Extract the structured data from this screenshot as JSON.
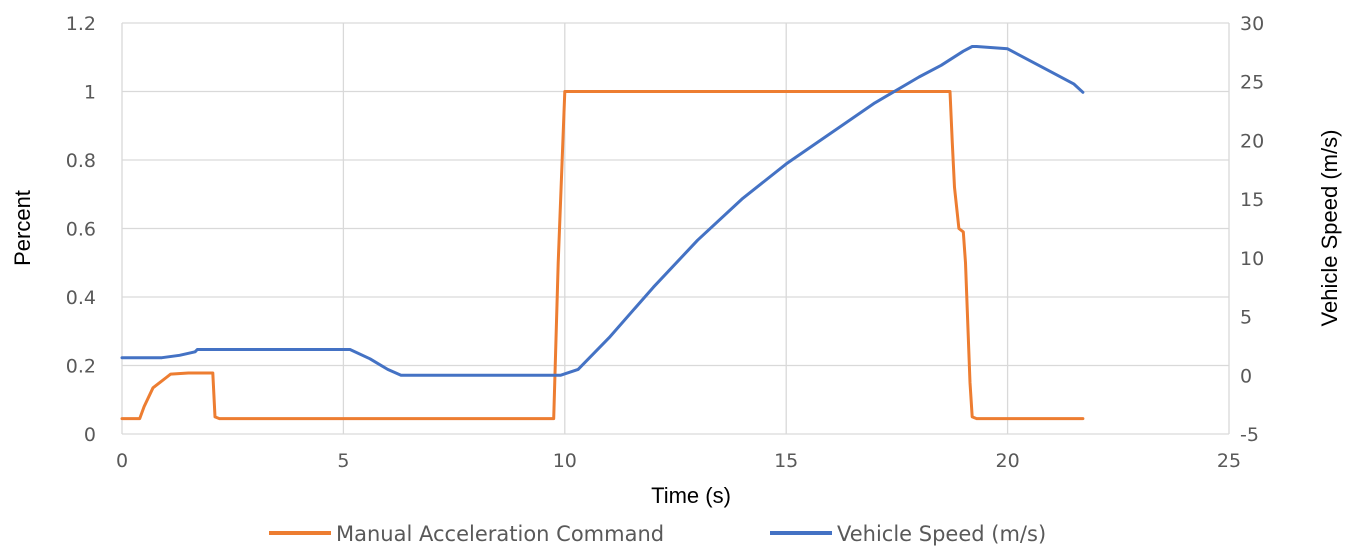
{
  "chart_data": {
    "type": "line",
    "xlabel": "Time (s)",
    "ylabel_left": "Percent",
    "ylabel_right": "Vehicle Speed (m/s)",
    "xlim": [
      0,
      25
    ],
    "ylim_left": [
      0,
      1.2
    ],
    "ylim_right": [
      -5,
      30
    ],
    "x_ticks": [
      "0",
      "5",
      "10",
      "15",
      "20",
      "25"
    ],
    "y_left_ticks": [
      "0",
      "0.2",
      "0.4",
      "0.6",
      "0.8",
      "1",
      "1.2"
    ],
    "y_right_ticks": [
      "-5",
      "0",
      "5",
      "10",
      "15",
      "20",
      "25",
      "30"
    ],
    "grid": true,
    "legend_position": "bottom",
    "series": [
      {
        "name": "Manual Acceleration Command",
        "axis": "left",
        "color": "#ED7D31",
        "x": [
          0,
          0.4,
          0.5,
          0.7,
          1.0,
          1.1,
          1.5,
          2.05,
          2.1,
          2.2,
          5.0,
          9.75,
          9.85,
          10.0,
          15.0,
          18.7,
          18.75,
          18.8,
          18.9,
          19.0,
          19.05,
          19.15,
          19.2,
          19.3,
          20.0,
          21.7
        ],
        "y": [
          0.045,
          0.045,
          0.08,
          0.135,
          0.165,
          0.175,
          0.178,
          0.178,
          0.05,
          0.045,
          0.045,
          0.045,
          0.5,
          1.0,
          1.0,
          1.0,
          0.85,
          0.72,
          0.6,
          0.59,
          0.5,
          0.15,
          0.05,
          0.045,
          0.045,
          0.045
        ]
      },
      {
        "name": "Vehicle Speed (m/s)",
        "axis": "right",
        "color": "#4472C4",
        "x": [
          0,
          0.9,
          1.3,
          1.65,
          1.7,
          5.15,
          5.6,
          6.0,
          6.3,
          6.8,
          9.9,
          10.3,
          11.0,
          12.0,
          13.0,
          14.0,
          15.0,
          16.0,
          17.0,
          18.0,
          18.5,
          19.0,
          19.2,
          19.3,
          20.0,
          20.5,
          21.0,
          21.5,
          21.7
        ],
        "y": [
          1.5,
          1.5,
          1.7,
          2.0,
          2.2,
          2.2,
          1.4,
          0.5,
          0.0,
          0.0,
          0.0,
          0.5,
          3.2,
          7.5,
          11.5,
          15.0,
          18.0,
          20.6,
          23.2,
          25.4,
          26.4,
          27.6,
          28.0,
          28.0,
          27.8,
          26.8,
          25.8,
          24.8,
          24.1
        ]
      }
    ]
  }
}
